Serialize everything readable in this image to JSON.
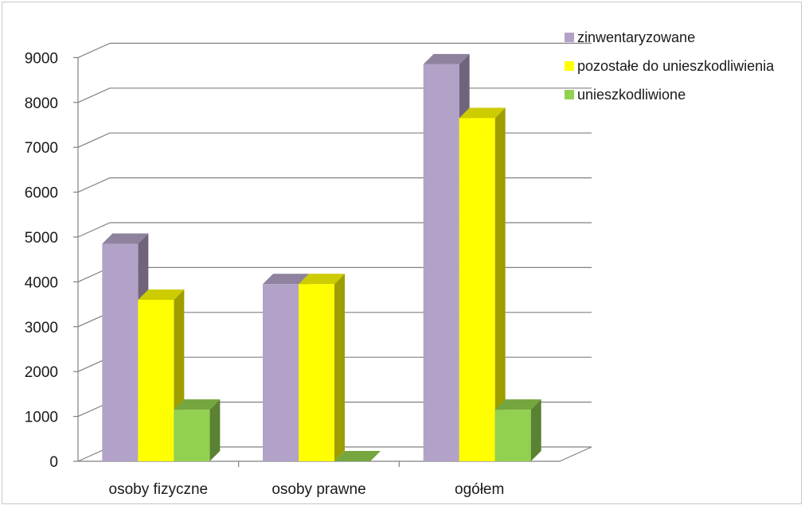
{
  "chart_data": {
    "type": "bar",
    "style": "3d-clustered-column",
    "categories": [
      "osoby fizyczne",
      "osoby prawne",
      "ogółem"
    ],
    "series": [
      {
        "name": "zinwentaryzowane",
        "values": [
          4850,
          3950,
          8850
        ],
        "color": "#b3a2c7"
      },
      {
        "name": "pozostałe do unieszkodliwienia",
        "values": [
          3600,
          3950,
          7650
        ],
        "color": "#ffff00"
      },
      {
        "name": "unieszkodliwione",
        "values": [
          1150,
          0,
          1150
        ],
        "color": "#92d050"
      }
    ],
    "yticks": [
      0,
      1000,
      2000,
      3000,
      4000,
      5000,
      6000,
      7000,
      8000,
      9000
    ],
    "ylim": [
      0,
      9000
    ],
    "grid": true,
    "legend_position": "top-right"
  }
}
